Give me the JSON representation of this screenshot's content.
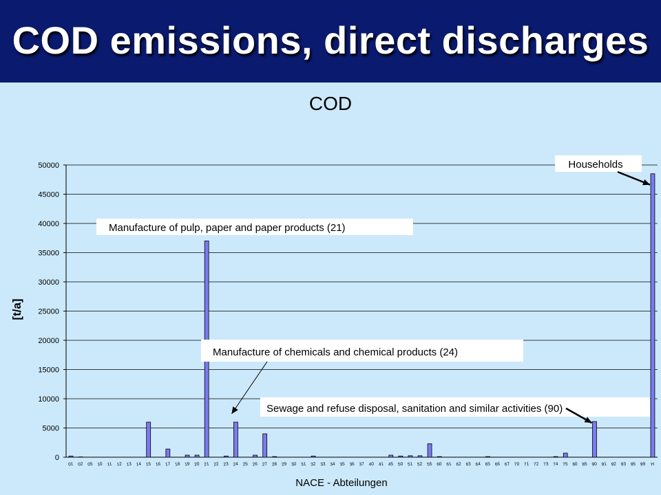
{
  "slide": {
    "title": "COD emissions, direct discharges"
  },
  "chart_data": {
    "type": "bar",
    "title": "COD",
    "xlabel": "NACE - Abteilungen",
    "ylabel": "[t/a]",
    "ylim": [
      0,
      50000
    ],
    "yticks": [
      0,
      5000,
      10000,
      15000,
      20000,
      25000,
      30000,
      35000,
      40000,
      45000,
      50000
    ],
    "grid": true,
    "bar_color": "#7b7bf0",
    "categories": [
      "01",
      "02",
      "05",
      "10",
      "11",
      "12",
      "13",
      "14",
      "15",
      "16",
      "17",
      "18",
      "19",
      "20",
      "21",
      "22",
      "23",
      "24",
      "25",
      "26",
      "27",
      "28",
      "29",
      "30",
      "31",
      "32",
      "33",
      "34",
      "35",
      "36",
      "37",
      "40",
      "41",
      "45",
      "50",
      "51",
      "52",
      "55",
      "60",
      "61",
      "62",
      "63",
      "64",
      "65",
      "66",
      "67",
      "70",
      "71",
      "72",
      "73",
      "74",
      "75",
      "80",
      "85",
      "90",
      "91",
      "92",
      "93",
      "95",
      "99",
      "H"
    ],
    "values": [
      200,
      50,
      0,
      0,
      0,
      0,
      0,
      0,
      6000,
      0,
      1400,
      0,
      350,
      350,
      37000,
      0,
      200,
      6000,
      0,
      350,
      4000,
      100,
      0,
      0,
      0,
      200,
      0,
      0,
      0,
      0,
      0,
      0,
      0,
      350,
      200,
      250,
      250,
      2300,
      100,
      0,
      0,
      0,
      0,
      100,
      0,
      0,
      0,
      0,
      0,
      0,
      100,
      700,
      0,
      0,
      6100,
      0,
      0,
      0,
      0,
      0,
      48500
    ],
    "annotations": [
      {
        "text": "Households",
        "category": "H"
      },
      {
        "text": "Manufacture of pulp, paper and paper products (21)",
        "category": "21"
      },
      {
        "text": "Manufacture of chemicals and chemical products (24)",
        "category": "24"
      },
      {
        "text": "Sewage and refuse disposal, sanitation and similar activities (90)",
        "category": "90"
      }
    ]
  }
}
